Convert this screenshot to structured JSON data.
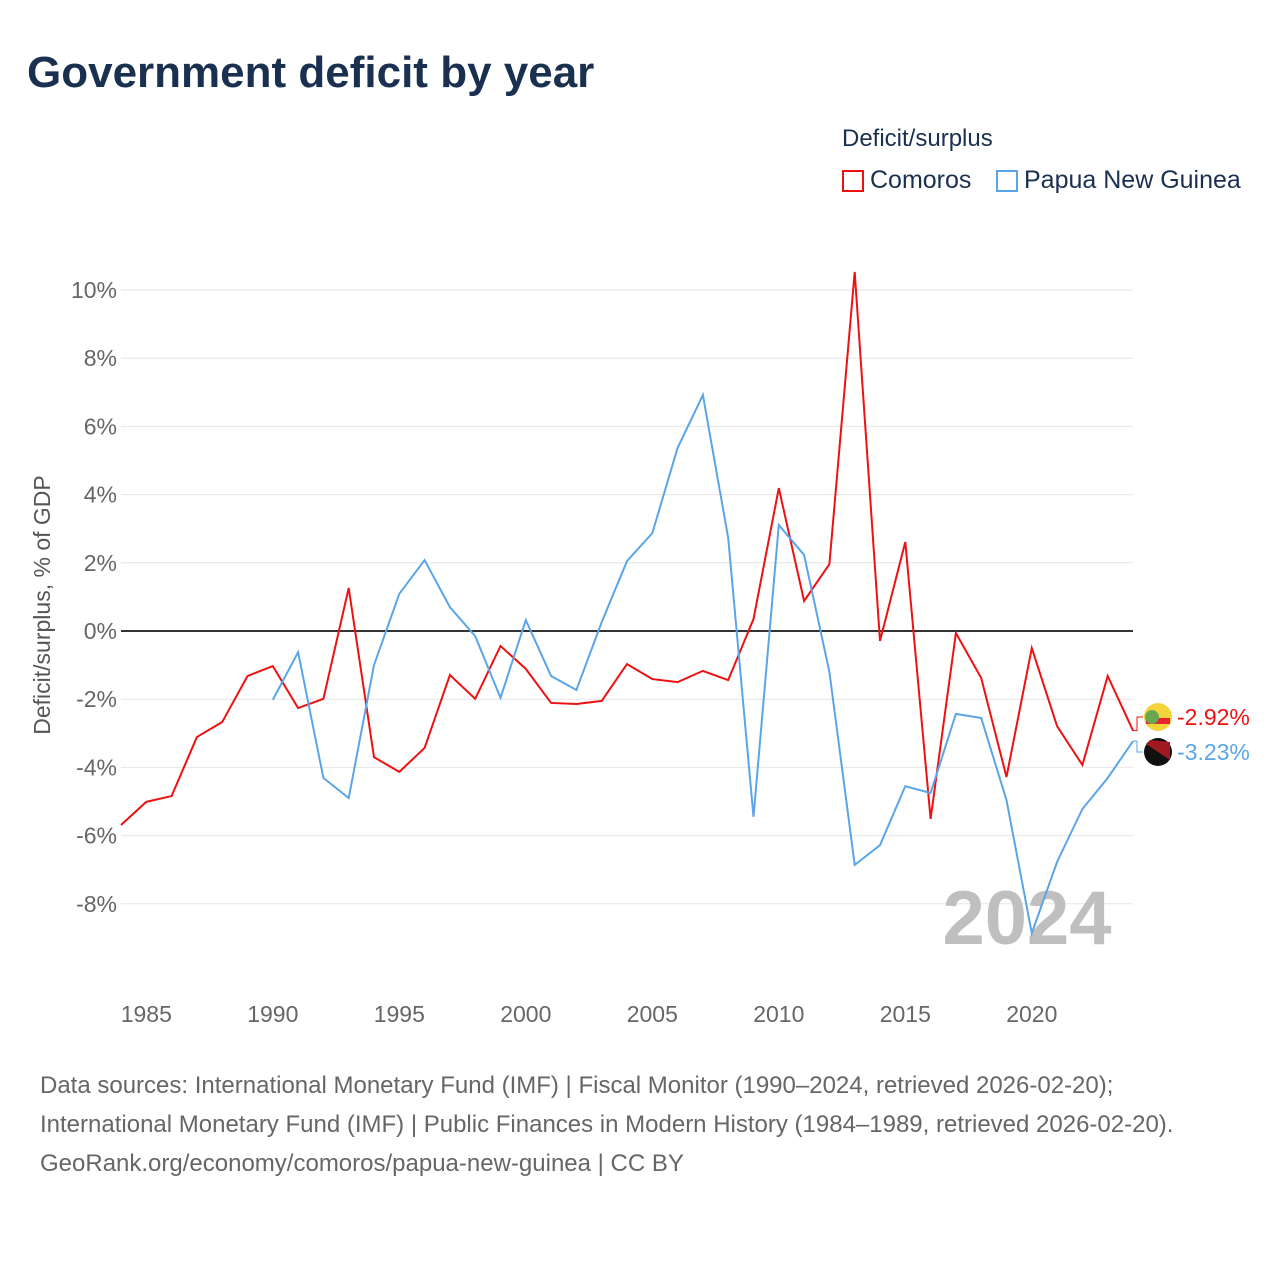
{
  "chart_data": {
    "type": "line",
    "title": "Government deficit by year",
    "ylabel": "Deficit/surplus, % of GDP",
    "xlabel": "",
    "legend_title": "Deficit/surplus",
    "legend_placement": "top-right",
    "ylim": [
      -10,
      11
    ],
    "xlim": [
      1984,
      2024
    ],
    "yticks": [
      -8,
      -6,
      -4,
      -2,
      0,
      2,
      4,
      6,
      8,
      10
    ],
    "ytick_labels": [
      "-8%",
      "-6%",
      "-4%",
      "-2%",
      "0%",
      "2%",
      "4%",
      "6%",
      "8%",
      "10%"
    ],
    "xticks": [
      1985,
      1990,
      1995,
      2000,
      2005,
      2010,
      2015,
      2020
    ],
    "xtick_labels": [
      "1985",
      "1990",
      "1995",
      "2000",
      "2005",
      "2010",
      "2015",
      "2020"
    ],
    "watermark": "2024",
    "series": [
      {
        "name": "Comoros",
        "color": "#ee1111",
        "start": 1984,
        "end_label": "-2.92%",
        "values": [
          -5.69,
          -5.01,
          -4.84,
          -3.11,
          -2.67,
          -1.32,
          -1.03,
          -2.26,
          -1.99,
          1.26,
          -3.7,
          -4.13,
          -3.43,
          -1.29,
          -1.99,
          -0.44,
          -1.11,
          -2.11,
          -2.14,
          -2.05,
          -0.97,
          -1.41,
          -1.5,
          -1.17,
          -1.44,
          0.35,
          4.19,
          0.88,
          1.96,
          10.53,
          -0.29,
          2.61,
          -5.51,
          -0.06,
          -1.38,
          -4.28,
          -0.5,
          -2.79,
          -3.93,
          -1.32,
          -2.92
        ]
      },
      {
        "name": "Papua New Guinea",
        "color": "#5aa5e8",
        "start": 1990,
        "end_label": "-3.23%",
        "values": [
          -2.02,
          -0.62,
          -4.31,
          -4.9,
          -1.0,
          1.09,
          2.08,
          0.7,
          -0.15,
          -1.96,
          0.32,
          -1.32,
          -1.73,
          0.26,
          2.05,
          2.87,
          5.37,
          6.92,
          2.73,
          -5.45,
          3.11,
          2.23,
          -1.2,
          -6.86,
          -6.28,
          -4.55,
          -4.75,
          -2.43,
          -2.55,
          -4.96,
          -8.86,
          -6.77,
          -5.22,
          -4.31,
          -3.23
        ]
      }
    ]
  },
  "sources": [
    "Data sources: International Monetary Fund (IMF) | Fiscal Monitor (1990–2024, retrieved 2026-02-20); International Monetary Fund (IMF) | Public Finances in Modern History (1984–1989, retrieved 2026-02-20).",
    "GeoRank.org/economy/comoros/papua-new-guinea | CC BY"
  ]
}
